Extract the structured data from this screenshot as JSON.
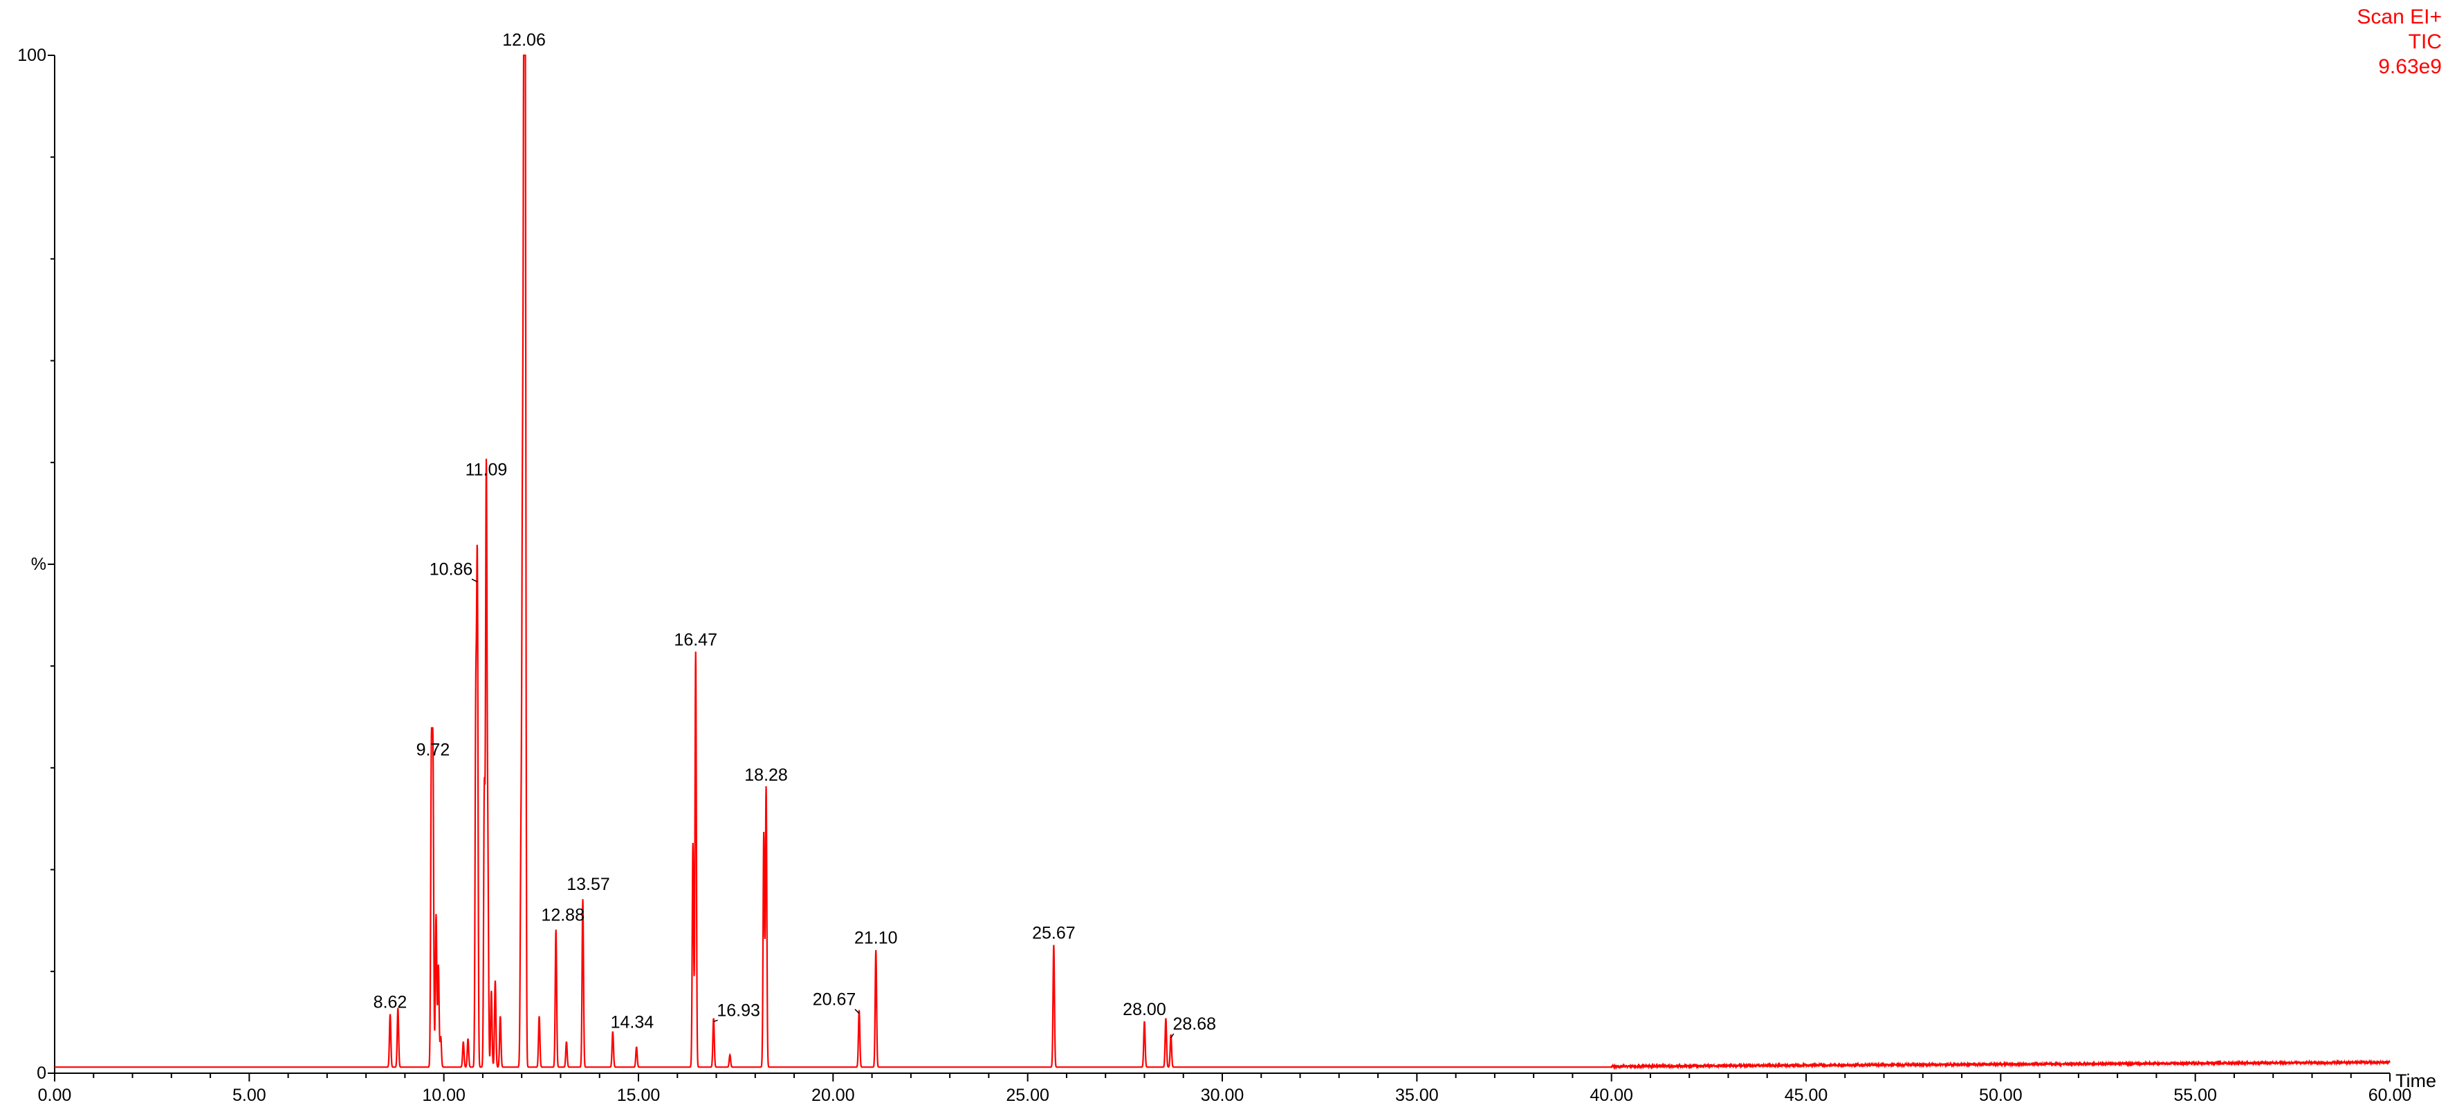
{
  "header": {
    "scan_mode": "Scan EI+",
    "trace": "TIC",
    "max_intensity": "9.63e9"
  },
  "colors": {
    "trace": "#ff0000",
    "axis": "#000000",
    "label": "#000000",
    "header": "#ff0000"
  },
  "chart_data": {
    "type": "line",
    "title": "",
    "xlabel": "Time",
    "ylabel": "%",
    "xlim": [
      0,
      60
    ],
    "ylim": [
      0,
      100
    ],
    "x_ticks": [
      "0.00",
      "5.00",
      "10.00",
      "15.00",
      "20.00",
      "25.00",
      "30.00",
      "35.00",
      "40.00",
      "45.00",
      "50.00",
      "55.00",
      "60.00"
    ],
    "y_ticks": [
      {
        "value": 0,
        "label": "0"
      },
      {
        "value": 50,
        "label": "%"
      },
      {
        "value": 100,
        "label": "100"
      }
    ],
    "baseline": 0.6,
    "peaks": [
      {
        "rt": 8.62,
        "height": 5.2,
        "label": "8.62"
      },
      {
        "rt": 8.82,
        "height": 5.8
      },
      {
        "rt": 9.68,
        "height": 30.0
      },
      {
        "rt": 9.72,
        "height": 30.0,
        "label": "9.72"
      },
      {
        "rt": 9.8,
        "height": 15.0
      },
      {
        "rt": 9.86,
        "height": 10.0
      },
      {
        "rt": 9.92,
        "height": 3.0
      },
      {
        "rt": 10.5,
        "height": 2.5
      },
      {
        "rt": 10.62,
        "height": 2.8
      },
      {
        "rt": 10.82,
        "height": 34.0
      },
      {
        "rt": 10.86,
        "height": 48.0,
        "label": "10.86"
      },
      {
        "rt": 11.04,
        "height": 27.0
      },
      {
        "rt": 11.09,
        "height": 57.5,
        "label": "11.09"
      },
      {
        "rt": 11.13,
        "height": 20.0
      },
      {
        "rt": 11.22,
        "height": 7.5
      },
      {
        "rt": 11.32,
        "height": 8.5
      },
      {
        "rt": 11.45,
        "height": 5.0
      },
      {
        "rt": 11.98,
        "height": 20.0
      },
      {
        "rt": 12.02,
        "height": 51.0
      },
      {
        "rt": 12.06,
        "height": 100.0,
        "label": "12.06"
      },
      {
        "rt": 12.09,
        "height": 91.0
      },
      {
        "rt": 12.45,
        "height": 5.0
      },
      {
        "rt": 12.88,
        "height": 13.5,
        "label": "12.88"
      },
      {
        "rt": 13.15,
        "height": 2.5
      },
      {
        "rt": 13.57,
        "height": 16.5,
        "label": "13.57"
      },
      {
        "rt": 14.34,
        "height": 3.5,
        "label": "14.34"
      },
      {
        "rt": 14.95,
        "height": 2.0
      },
      {
        "rt": 16.4,
        "height": 22.0
      },
      {
        "rt": 16.47,
        "height": 40.8,
        "label": "16.47"
      },
      {
        "rt": 16.93,
        "height": 4.8,
        "label": "16.93"
      },
      {
        "rt": 17.35,
        "height": 1.2
      },
      {
        "rt": 18.22,
        "height": 23.0
      },
      {
        "rt": 18.28,
        "height": 27.5,
        "label": "18.28"
      },
      {
        "rt": 20.67,
        "height": 5.6,
        "label": "20.67"
      },
      {
        "rt": 21.1,
        "height": 11.5,
        "label": "21.10"
      },
      {
        "rt": 25.67,
        "height": 12.0,
        "label": "25.67"
      },
      {
        "rt": 28.0,
        "height": 4.5,
        "label": "28.00"
      },
      {
        "rt": 28.55,
        "height": 4.8
      },
      {
        "rt": 28.68,
        "height": 3.2,
        "label": "28.68"
      }
    ]
  }
}
